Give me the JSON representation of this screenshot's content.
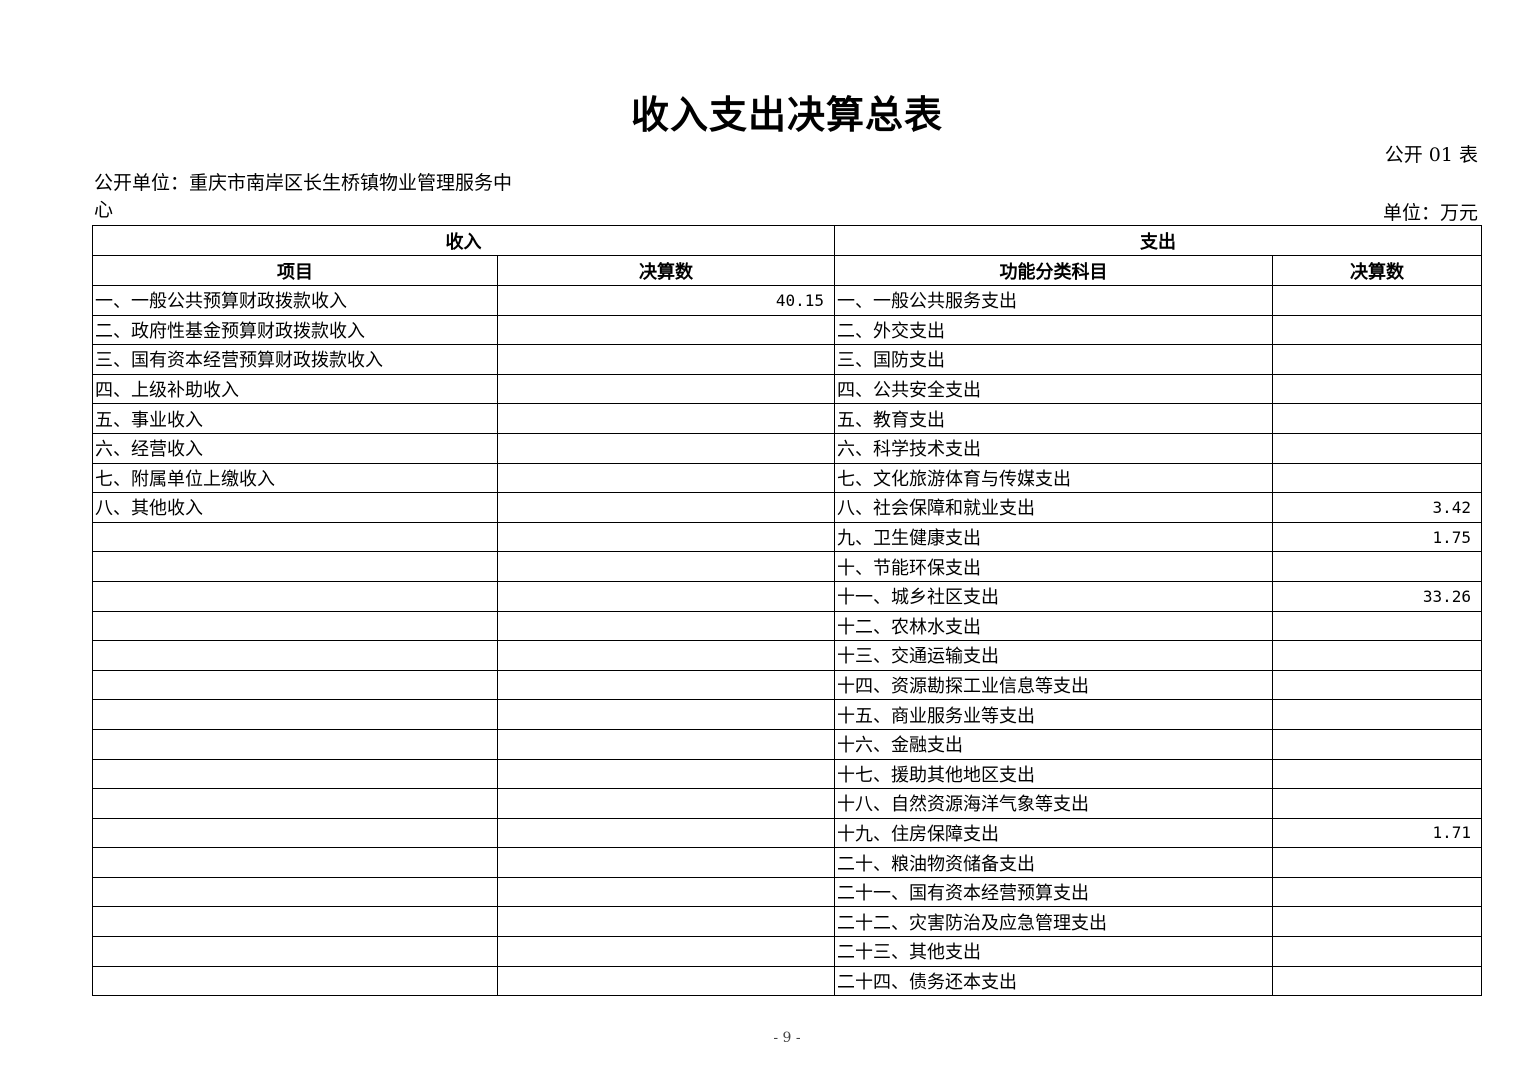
{
  "title": "收入支出决算总表",
  "form_no": "公开 01 表",
  "unit_name": "公开单位：重庆市南岸区长生桥镇物业管理服务中心",
  "unit": "单位：万元",
  "header": {
    "income": "收入",
    "expense": "支出",
    "item": "项目",
    "income_amount": "决算数",
    "category": "功能分类科目",
    "expense_amount": "决算数"
  },
  "rows": [
    {
      "income_item": "一、一般公共预算财政拨款收入",
      "income_amount": "40.15",
      "expense_item": "一、一般公共服务支出",
      "expense_amount": ""
    },
    {
      "income_item": "二、政府性基金预算财政拨款收入",
      "income_amount": "",
      "expense_item": "二、外交支出",
      "expense_amount": ""
    },
    {
      "income_item": "三、国有资本经营预算财政拨款收入",
      "income_amount": "",
      "expense_item": "三、国防支出",
      "expense_amount": ""
    },
    {
      "income_item": "四、上级补助收入",
      "income_amount": "",
      "expense_item": "四、公共安全支出",
      "expense_amount": ""
    },
    {
      "income_item": "五、事业收入",
      "income_amount": "",
      "expense_item": "五、教育支出",
      "expense_amount": ""
    },
    {
      "income_item": "六、经营收入",
      "income_amount": "",
      "expense_item": "六、科学技术支出",
      "expense_amount": ""
    },
    {
      "income_item": "七、附属单位上缴收入",
      "income_amount": "",
      "expense_item": "七、文化旅游体育与传媒支出",
      "expense_amount": ""
    },
    {
      "income_item": "八、其他收入",
      "income_amount": "",
      "expense_item": "八、社会保障和就业支出",
      "expense_amount": "3.42"
    },
    {
      "income_item": "",
      "income_amount": "",
      "expense_item": "九、卫生健康支出",
      "expense_amount": "1.75"
    },
    {
      "income_item": "",
      "income_amount": "",
      "expense_item": "十、节能环保支出",
      "expense_amount": ""
    },
    {
      "income_item": "",
      "income_amount": "",
      "expense_item": "十一、城乡社区支出",
      "expense_amount": "33.26"
    },
    {
      "income_item": "",
      "income_amount": "",
      "expense_item": "十二、农林水支出",
      "expense_amount": ""
    },
    {
      "income_item": "",
      "income_amount": "",
      "expense_item": "十三、交通运输支出",
      "expense_amount": ""
    },
    {
      "income_item": "",
      "income_amount": "",
      "expense_item": "十四、资源勘探工业信息等支出",
      "expense_amount": ""
    },
    {
      "income_item": "",
      "income_amount": "",
      "expense_item": "十五、商业服务业等支出",
      "expense_amount": ""
    },
    {
      "income_item": "",
      "income_amount": "",
      "expense_item": "十六、金融支出",
      "expense_amount": ""
    },
    {
      "income_item": "",
      "income_amount": "",
      "expense_item": "十七、援助其他地区支出",
      "expense_amount": ""
    },
    {
      "income_item": "",
      "income_amount": "",
      "expense_item": "十八、自然资源海洋气象等支出",
      "expense_amount": ""
    },
    {
      "income_item": "",
      "income_amount": "",
      "expense_item": "十九、住房保障支出",
      "expense_amount": "1.71"
    },
    {
      "income_item": "",
      "income_amount": "",
      "expense_item": "二十、粮油物资储备支出",
      "expense_amount": ""
    },
    {
      "income_item": "",
      "income_amount": "",
      "expense_item": "二十一、国有资本经营预算支出",
      "expense_amount": ""
    },
    {
      "income_item": "",
      "income_amount": "",
      "expense_item": "二十二、灾害防治及应急管理支出",
      "expense_amount": ""
    },
    {
      "income_item": "",
      "income_amount": "",
      "expense_item": "二十三、其他支出",
      "expense_amount": ""
    },
    {
      "income_item": "",
      "income_amount": "",
      "expense_item": "二十四、债务还本支出",
      "expense_amount": ""
    }
  ],
  "page_number": "- 9 -"
}
